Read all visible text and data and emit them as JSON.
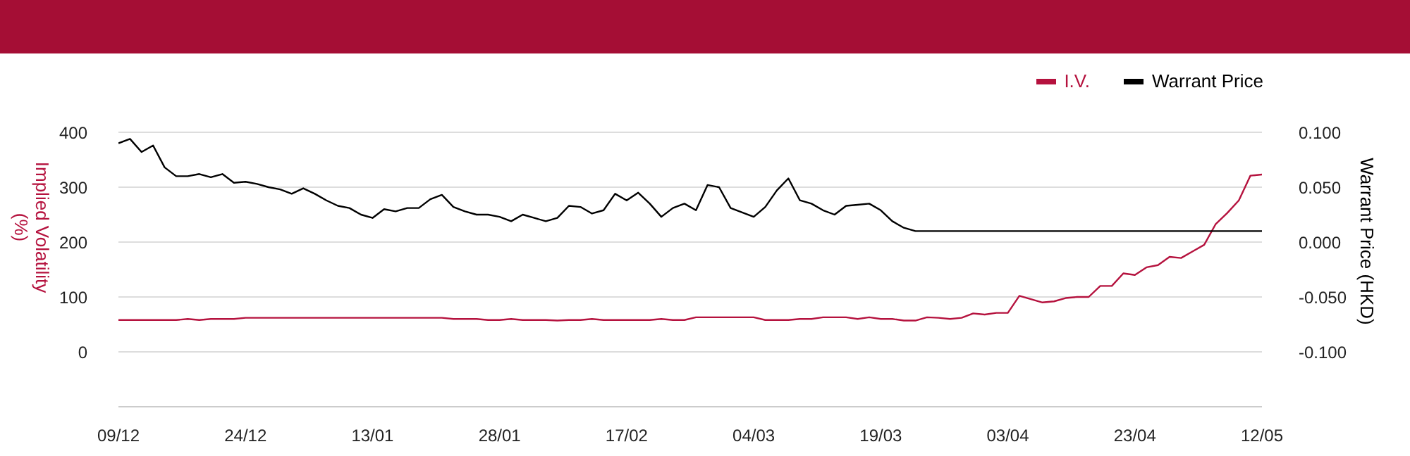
{
  "chart_data": {
    "type": "line",
    "categories": [
      "09/12",
      null,
      null,
      null,
      null,
      null,
      null,
      null,
      null,
      null,
      null,
      "24/12",
      null,
      null,
      null,
      null,
      null,
      null,
      null,
      null,
      null,
      null,
      "13/01",
      null,
      null,
      null,
      null,
      null,
      null,
      null,
      null,
      null,
      null,
      "28/01",
      null,
      null,
      null,
      null,
      null,
      null,
      null,
      null,
      null,
      null,
      "17/02",
      null,
      null,
      null,
      null,
      null,
      null,
      null,
      null,
      null,
      null,
      "04/03",
      null,
      null,
      null,
      null,
      null,
      null,
      null,
      null,
      null,
      null,
      "19/03",
      null,
      null,
      null,
      null,
      null,
      null,
      null,
      null,
      null,
      null,
      "03/04",
      null,
      null,
      null,
      null,
      null,
      null,
      null,
      null,
      null,
      null,
      "23/04",
      null,
      null,
      null,
      null,
      null,
      null,
      null,
      null,
      null,
      null,
      "12/05"
    ],
    "series": [
      {
        "name": "I.V.",
        "color": "#b5123e",
        "values": [
          58,
          58,
          58,
          58,
          58,
          58,
          60,
          58,
          60,
          60,
          60,
          62,
          62,
          62,
          62,
          62,
          62,
          62,
          62,
          62,
          62,
          62,
          62,
          62,
          62,
          62,
          62,
          62,
          62,
          60,
          60,
          60,
          58,
          58,
          60,
          58,
          58,
          58,
          57,
          58,
          58,
          60,
          58,
          58,
          58,
          58,
          58,
          60,
          58,
          58,
          63,
          63,
          63,
          63,
          63,
          63,
          58,
          58,
          58,
          60,
          60,
          63,
          63,
          63,
          60,
          63,
          60,
          60,
          57,
          57,
          63,
          62,
          60,
          62,
          70,
          68,
          71,
          71,
          102,
          96,
          90,
          92,
          98,
          100,
          100,
          120,
          120,
          143,
          140,
          154,
          158,
          173,
          171,
          183,
          195,
          233,
          253,
          276,
          321,
          323
        ]
      },
      {
        "name": "Warrant Price",
        "color": "#000000",
        "axis": "y2",
        "values": [
          0.09,
          0.094,
          0.082,
          0.088,
          0.068,
          0.06,
          0.06,
          0.062,
          0.059,
          0.062,
          0.054,
          0.055,
          0.053,
          0.05,
          0.048,
          0.044,
          0.049,
          0.044,
          0.038,
          0.033,
          0.031,
          0.025,
          0.022,
          0.03,
          0.028,
          0.031,
          0.031,
          0.039,
          0.043,
          0.032,
          0.028,
          0.025,
          0.025,
          0.023,
          0.019,
          0.025,
          0.022,
          0.019,
          0.022,
          0.033,
          0.032,
          0.026,
          0.029,
          0.044,
          0.038,
          0.045,
          0.035,
          0.023,
          0.031,
          0.035,
          0.029,
          0.052,
          0.05,
          0.031,
          0.027,
          0.023,
          0.032,
          0.047,
          0.058,
          0.038,
          0.035,
          0.029,
          0.025,
          0.033,
          0.034,
          0.035,
          0.029,
          0.019,
          0.013,
          0.01,
          0.01,
          0.01,
          0.01,
          0.01,
          0.01,
          0.01,
          0.01,
          0.01,
          0.01,
          0.01,
          0.01,
          0.01,
          0.01,
          0.01,
          0.01,
          0.01,
          0.01,
          0.01,
          0.01,
          0.01,
          0.01,
          0.01,
          0.01,
          0.01,
          0.01,
          0.01,
          0.01,
          0.01,
          0.01,
          0.01
        ]
      }
    ],
    "ylabel": "Implied Volatility (%)",
    "y2label": "Warrant Price (HKD)",
    "ylim": [
      -100,
      400
    ],
    "yticks": [
      {
        "value": -100,
        "label": null
      },
      0,
      100,
      200,
      300,
      400
    ],
    "y2lim": [
      -0.15,
      0.1
    ],
    "y2ticks": [
      {
        "value": -0.15,
        "label": null
      },
      {
        "value": -0.1,
        "label": "-0.100"
      },
      {
        "value": -0.05,
        "label": "-0.050"
      },
      {
        "value": 0,
        "label": "0.000"
      },
      {
        "value": 0.05,
        "label": "0.050"
      },
      {
        "value": 0.1,
        "label": "0.100"
      }
    ],
    "grid": "y",
    "legend": "top right",
    "marker": "none",
    "line_style": "solid"
  }
}
